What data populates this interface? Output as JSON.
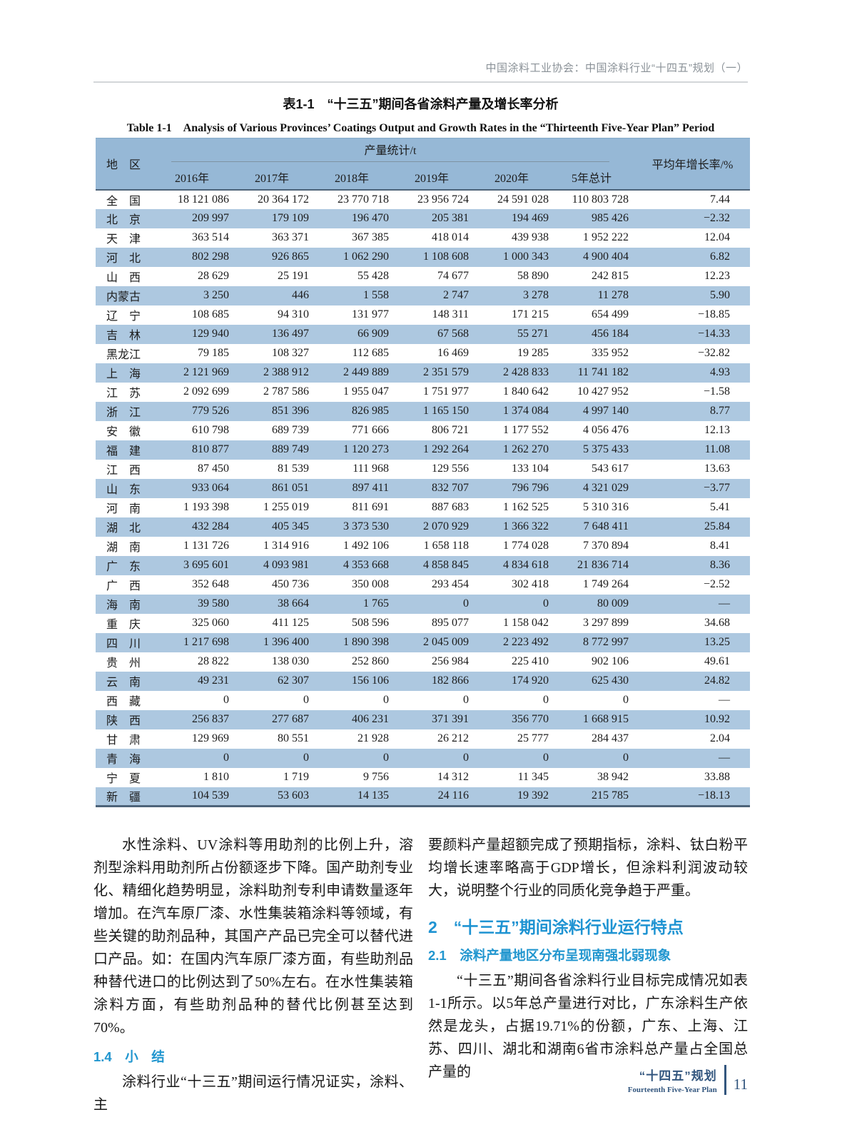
{
  "colors": {
    "accent_blue": "#2196cf",
    "heading_blue": "#1e93d2",
    "table_header_bg": "#96b8d6",
    "table_stripe_bg": "#adc8e0",
    "table_rule_dark": "#4d6379",
    "footer_navy": "#33567e",
    "running_head_gray": "#8a9197"
  },
  "header": {
    "text": "中国涂料工业协会：中国涂料行业“十四五”规划（一）"
  },
  "titles": {
    "zh": "表1-1　“十三五”期间各省涂料产量及增长率分析",
    "en": "Table 1-1　Analysis of Various Provinces’ Coatings Output and Growth Rates in the “Thirteenth Five-Year Plan” Period"
  },
  "table": {
    "header": {
      "region": "地　区",
      "group": "产量统计/t",
      "years": [
        "2016年",
        "2017年",
        "2018年",
        "2019年",
        "2020年",
        "5年总计"
      ],
      "rate": "平均年增长率/%"
    },
    "rows": [
      {
        "name": "全　国",
        "values": [
          "18 121 086",
          "20 364 172",
          "23 770 718",
          "23 956 724",
          "24 591 028",
          "110 803 728"
        ],
        "rate": "7.44"
      },
      {
        "name": "北　京",
        "values": [
          "209 997",
          "179 109",
          "196 470",
          "205 381",
          "194 469",
          "985 426"
        ],
        "rate": "−2.32"
      },
      {
        "name": "天　津",
        "values": [
          "363 514",
          "363 371",
          "367 385",
          "418 014",
          "439 938",
          "1 952 222"
        ],
        "rate": "12.04"
      },
      {
        "name": "河　北",
        "values": [
          "802 298",
          "926 865",
          "1 062 290",
          "1 108 608",
          "1 000 343",
          "4 900 404"
        ],
        "rate": "6.82"
      },
      {
        "name": "山　西",
        "values": [
          "28 629",
          "25 191",
          "55 428",
          "74 677",
          "58 890",
          "242 815"
        ],
        "rate": "12.23"
      },
      {
        "name": "内蒙古",
        "values": [
          "3 250",
          "446",
          "1 558",
          "2 747",
          "3 278",
          "11 278"
        ],
        "rate": "5.90"
      },
      {
        "name": "辽　宁",
        "values": [
          "108 685",
          "94 310",
          "131 977",
          "148 311",
          "171 215",
          "654 499"
        ],
        "rate": "−18.85"
      },
      {
        "name": "吉　林",
        "values": [
          "129 940",
          "136 497",
          "66 909",
          "67 568",
          "55 271",
          "456 184"
        ],
        "rate": "−14.33"
      },
      {
        "name": "黑龙江",
        "values": [
          "79 185",
          "108 327",
          "112 685",
          "16 469",
          "19 285",
          "335 952"
        ],
        "rate": "−32.82"
      },
      {
        "name": "上　海",
        "values": [
          "2 121 969",
          "2 388 912",
          "2 449 889",
          "2 351 579",
          "2 428 833",
          "11 741 182"
        ],
        "rate": "4.93"
      },
      {
        "name": "江　苏",
        "values": [
          "2 092 699",
          "2 787 586",
          "1 955 047",
          "1 751 977",
          "1 840 642",
          "10 427 952"
        ],
        "rate": "−1.58"
      },
      {
        "name": "浙　江",
        "values": [
          "779 526",
          "851 396",
          "826 985",
          "1 165 150",
          "1 374 084",
          "4 997 140"
        ],
        "rate": "8.77"
      },
      {
        "name": "安　徽",
        "values": [
          "610 798",
          "689 739",
          "771 666",
          "806 721",
          "1 177 552",
          "4 056 476"
        ],
        "rate": "12.13"
      },
      {
        "name": "福　建",
        "values": [
          "810 877",
          "889 749",
          "1 120 273",
          "1 292 264",
          "1 262 270",
          "5 375 433"
        ],
        "rate": "11.08"
      },
      {
        "name": "江　西",
        "values": [
          "87 450",
          "81 539",
          "111 968",
          "129 556",
          "133 104",
          "543 617"
        ],
        "rate": "13.63"
      },
      {
        "name": "山　东",
        "values": [
          "933 064",
          "861 051",
          "897 411",
          "832 707",
          "796 796",
          "4 321 029"
        ],
        "rate": "−3.77"
      },
      {
        "name": "河　南",
        "values": [
          "1 193 398",
          "1 255 019",
          "811 691",
          "887 683",
          "1 162 525",
          "5 310 316"
        ],
        "rate": "5.41"
      },
      {
        "name": "湖　北",
        "values": [
          "432 284",
          "405 345",
          "3 373 530",
          "2 070 929",
          "1 366 322",
          "7 648 411"
        ],
        "rate": "25.84"
      },
      {
        "name": "湖　南",
        "values": [
          "1 131 726",
          "1 314 916",
          "1 492 106",
          "1 658 118",
          "1 774 028",
          "7 370 894"
        ],
        "rate": "8.41"
      },
      {
        "name": "广　东",
        "values": [
          "3 695 601",
          "4 093 981",
          "4 353 668",
          "4 858 845",
          "4 834 618",
          "21 836 714"
        ],
        "rate": "8.36"
      },
      {
        "name": "广　西",
        "values": [
          "352 648",
          "450 736",
          "350 008",
          "293 454",
          "302 418",
          "1 749 264"
        ],
        "rate": "−2.52"
      },
      {
        "name": "海　南",
        "values": [
          "39 580",
          "38 664",
          "1 765",
          "0",
          "0",
          "80 009"
        ],
        "rate": "—"
      },
      {
        "name": "重　庆",
        "values": [
          "325 060",
          "411 125",
          "508 596",
          "895 077",
          "1 158 042",
          "3 297 899"
        ],
        "rate": "34.68"
      },
      {
        "name": "四　川",
        "values": [
          "1 217 698",
          "1 396 400",
          "1 890 398",
          "2 045 009",
          "2 223 492",
          "8 772 997"
        ],
        "rate": "13.25"
      },
      {
        "name": "贵　州",
        "values": [
          "28 822",
          "138 030",
          "252 860",
          "256 984",
          "225 410",
          "902 106"
        ],
        "rate": "49.61"
      },
      {
        "name": "云　南",
        "values": [
          "49 231",
          "62 307",
          "156 106",
          "182 866",
          "174 920",
          "625 430"
        ],
        "rate": "24.82"
      },
      {
        "name": "西　藏",
        "values": [
          "0",
          "0",
          "0",
          "0",
          "0",
          "0"
        ],
        "rate": "—"
      },
      {
        "name": "陕　西",
        "values": [
          "256 837",
          "277 687",
          "406 231",
          "371 391",
          "356 770",
          "1 668 915"
        ],
        "rate": "10.92"
      },
      {
        "name": "甘　肃",
        "values": [
          "129 969",
          "80 551",
          "21 928",
          "26 212",
          "25 777",
          "284 437"
        ],
        "rate": "2.04"
      },
      {
        "name": "青　海",
        "values": [
          "0",
          "0",
          "0",
          "0",
          "0",
          "0"
        ],
        "rate": "—"
      },
      {
        "name": "宁　夏",
        "values": [
          "1 810",
          "1 719",
          "9 756",
          "14 312",
          "11 345",
          "38 942"
        ],
        "rate": "33.88"
      },
      {
        "name": "新　疆",
        "values": [
          "104 539",
          "53 603",
          "14 135",
          "24 116",
          "19 392",
          "215 785"
        ],
        "rate": "−18.13"
      }
    ]
  },
  "body": {
    "left": {
      "paragraph1": "水性涂料、UV涂料等用助剂的比例上升，溶剂型涂料用助剂所占份额逐步下降。国产助剂专业化、精细化趋势明显，涂料助剂专利申请数量逐年增加。在汽车原厂漆、水性集装箱涂料等领域，有些关键的助剂品种，其国产产品已完全可以替代进口产品。如：在国内汽车原厂漆方面，有些助剂品种替代进口的比例达到了50%左右。在水性集装箱涂料方面，有些助剂品种的替代比例甚至达到70%。",
      "heading": "1.4　小　结",
      "paragraph2": "涂料行业“十三五”期间运行情况证实，涂料、主"
    },
    "right": {
      "paragraph1": "要颜料产量超额完成了预期指标，涂料、钛白粉平均增长速率略高于GDP增长，但涂料利润波动较大，说明整个行业的同质化竞争趋于严重。",
      "heading2": "2　“十三五”期间涂料行业运行特点",
      "heading21": "2.1　涂料产量地区分布呈现南强北弱现象",
      "paragraph2": "“十三五”期间各省涂料行业目标完成情况如表1-1所示。以5年总产量进行对比，广东涂料生产依然是龙头，占据19.71%的份额，广东、上海、江苏、四川、湖北和湖南6省市涂料总产量占全国总产量的"
    }
  },
  "footer": {
    "zh": "“十四五”规划",
    "en": "Fourteenth Five-Year Plan",
    "page": "11"
  }
}
